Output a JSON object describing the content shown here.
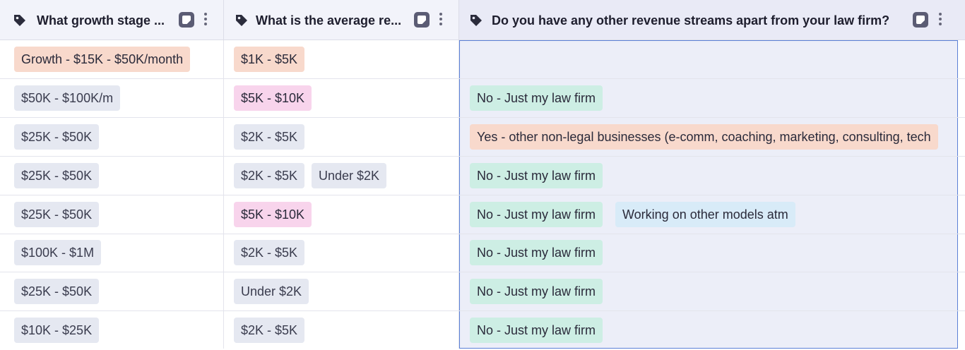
{
  "columns": [
    {
      "title": "What growth stage ..."
    },
    {
      "title": "What is the average re..."
    },
    {
      "title": "Do you have any other revenue streams apart from your law firm?"
    }
  ],
  "colors": {
    "gray": "#e5e8f1",
    "salmon": "#f8d9cc",
    "pink": "#f8d4ec",
    "mint": "#cdeee4",
    "sky": "#d8ebf8",
    "selection_border": "#5b80d6"
  },
  "rows": [
    {
      "c1": [
        "Growth - $15K - $50K/month"
      ],
      "c2": [
        "$1K - $5K"
      ],
      "c3": []
    },
    {
      "c1": [
        "$50K - $100K/m"
      ],
      "c2": [
        "$5K - $10K"
      ],
      "c3": [
        "No - Just my law firm"
      ]
    },
    {
      "c1": [
        "$25K - $50K"
      ],
      "c2": [
        "$2K - $5K"
      ],
      "c3": [
        "Yes - other non-legal businesses (e-comm, coaching, marketing, consulting, tech"
      ]
    },
    {
      "c1": [
        "$25K - $50K"
      ],
      "c2": [
        "$2K - $5K",
        "Under $2K"
      ],
      "c3": [
        "No - Just my law firm"
      ]
    },
    {
      "c1": [
        "$25K - $50K"
      ],
      "c2": [
        "$5K - $10K"
      ],
      "c3": [
        "No - Just my law firm",
        "Working on other models atm"
      ]
    },
    {
      "c1": [
        "$100K - $1M"
      ],
      "c2": [
        "$2K - $5K"
      ],
      "c3": [
        "No - Just my law firm"
      ]
    },
    {
      "c1": [
        "$25K - $50K"
      ],
      "c2": [
        "Under $2K"
      ],
      "c3": [
        "No - Just my law firm"
      ]
    },
    {
      "c1": [
        "$10K - $25K"
      ],
      "c2": [
        "$2K - $5K"
      ],
      "c3": [
        "No - Just my law firm"
      ]
    }
  ]
}
